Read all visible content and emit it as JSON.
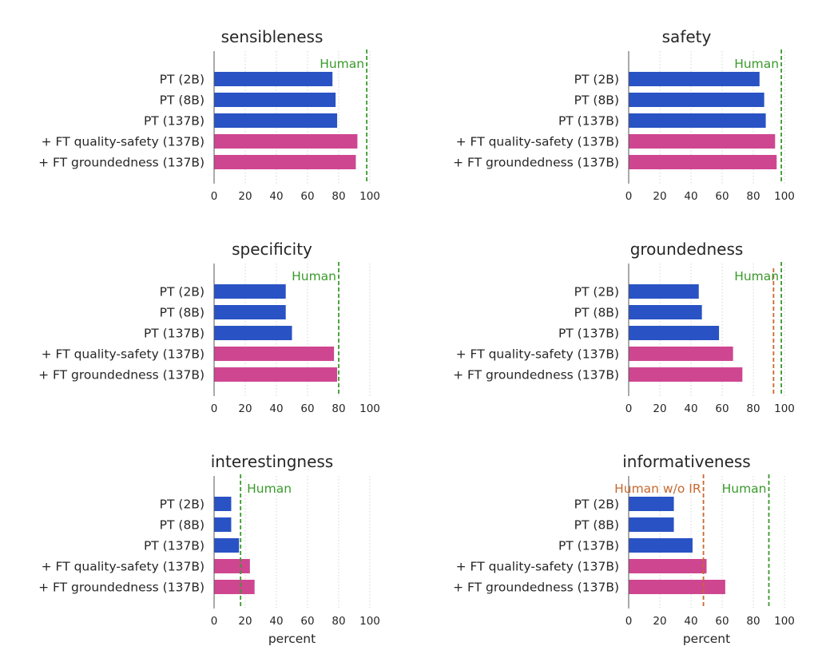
{
  "colors": {
    "pt": "#2952c4",
    "ft": "#cf4690",
    "human": "#3a9a2c",
    "human_wo_ir": "#c8682e",
    "grid": "#d4d4d4",
    "axis": "#555555"
  },
  "chart_data": [
    {
      "type": "bar",
      "orientation": "horizontal",
      "title": "sensibleness",
      "categories": [
        "PT (2B)",
        "PT (8B)",
        "PT (137B)",
        "+ FT quality-safety (137B)",
        "+ FT groundedness (137B)"
      ],
      "values": [
        76,
        78,
        79,
        92,
        91
      ],
      "xlim": [
        0,
        100
      ],
      "xticks": [
        0,
        20,
        40,
        60,
        80,
        100
      ],
      "xlabel": "",
      "reference_lines": [
        {
          "label": "Human",
          "value": 98,
          "color": "human",
          "style": "dashed"
        }
      ]
    },
    {
      "type": "bar",
      "orientation": "horizontal",
      "title": "safety",
      "categories": [
        "PT (2B)",
        "PT (8B)",
        "PT (137B)",
        "+ FT quality-safety (137B)",
        "+ FT groundedness (137B)"
      ],
      "values": [
        84,
        87,
        88,
        94,
        95
      ],
      "xlim": [
        0,
        100
      ],
      "xticks": [
        0,
        20,
        40,
        60,
        80,
        100
      ],
      "xlabel": "",
      "reference_lines": [
        {
          "label": "Human",
          "value": 98,
          "color": "human",
          "style": "dashed"
        }
      ]
    },
    {
      "type": "bar",
      "orientation": "horizontal",
      "title": "specificity",
      "categories": [
        "PT (2B)",
        "PT (8B)",
        "PT (137B)",
        "+ FT quality-safety (137B)",
        "+ FT groundedness (137B)"
      ],
      "values": [
        46,
        46,
        50,
        77,
        79
      ],
      "xlim": [
        0,
        100
      ],
      "xticks": [
        0,
        20,
        40,
        60,
        80,
        100
      ],
      "xlabel": "",
      "reference_lines": [
        {
          "label": "Human",
          "value": 80,
          "color": "human",
          "style": "dashed"
        }
      ]
    },
    {
      "type": "bar",
      "orientation": "horizontal",
      "title": "groundedness",
      "categories": [
        "PT (2B)",
        "PT (8B)",
        "PT (137B)",
        "+ FT quality-safety (137B)",
        "+ FT groundedness (137B)"
      ],
      "values": [
        45,
        47,
        58,
        67,
        73
      ],
      "xlim": [
        0,
        100
      ],
      "xticks": [
        0,
        20,
        40,
        60,
        80,
        100
      ],
      "xlabel": "",
      "reference_lines": [
        {
          "label": "",
          "value": 93,
          "color": "human_wo_ir",
          "style": "dashed"
        },
        {
          "label": "Human",
          "value": 98,
          "color": "human",
          "style": "dashed"
        }
      ]
    },
    {
      "type": "bar",
      "orientation": "horizontal",
      "title": "interestingness",
      "categories": [
        "PT (2B)",
        "PT (8B)",
        "PT (137B)",
        "+ FT quality-safety (137B)",
        "+ FT groundedness (137B)"
      ],
      "values": [
        11,
        11,
        16,
        23,
        26
      ],
      "xlim": [
        0,
        100
      ],
      "xticks": [
        0,
        20,
        40,
        60,
        80,
        100
      ],
      "xlabel": "percent",
      "reference_lines": [
        {
          "label": "Human",
          "value": 17,
          "color": "human",
          "style": "dashed"
        }
      ]
    },
    {
      "type": "bar",
      "orientation": "horizontal",
      "title": "informativeness",
      "categories": [
        "PT (2B)",
        "PT (8B)",
        "PT (137B)",
        "+ FT quality-safety (137B)",
        "+ FT groundedness (137B)"
      ],
      "values": [
        29,
        29,
        41,
        50,
        62
      ],
      "xlim": [
        0,
        100
      ],
      "xticks": [
        0,
        20,
        40,
        60,
        80,
        100
      ],
      "xlabel": "percent",
      "reference_lines": [
        {
          "label": "Human w/o IR",
          "value": 48,
          "color": "human_wo_ir",
          "style": "dashed"
        },
        {
          "label": "Human",
          "value": 90,
          "color": "human",
          "style": "dashed"
        }
      ]
    }
  ]
}
